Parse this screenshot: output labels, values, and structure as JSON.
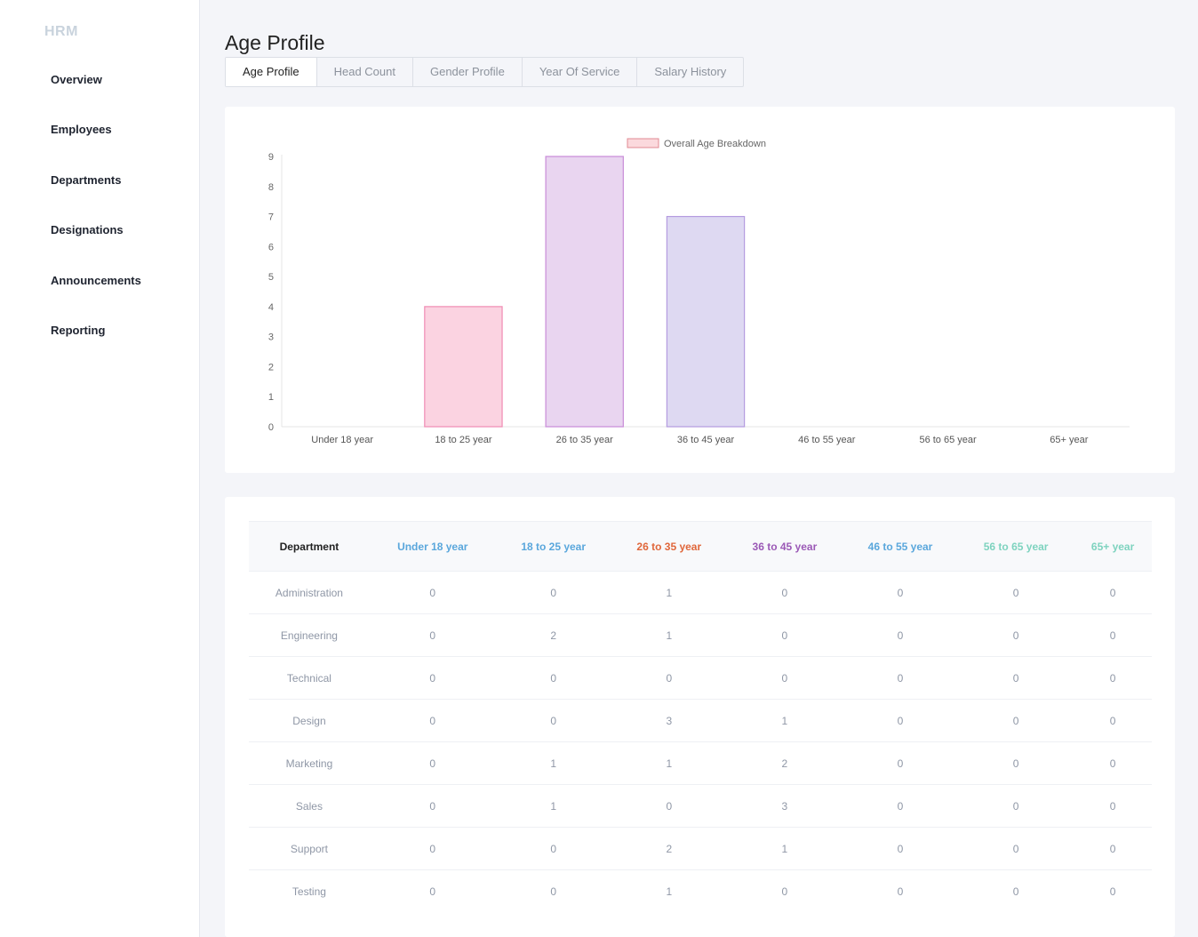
{
  "sidebar": {
    "brand": "HRM",
    "items": [
      {
        "label": "Overview"
      },
      {
        "label": "Employees"
      },
      {
        "label": "Departments"
      },
      {
        "label": "Designations"
      },
      {
        "label": "Announcements"
      },
      {
        "label": "Reporting"
      }
    ]
  },
  "page": {
    "title": "Age Profile"
  },
  "tabs": [
    {
      "label": "Age Profile",
      "active": true
    },
    {
      "label": "Head Count",
      "active": false
    },
    {
      "label": "Gender Profile",
      "active": false
    },
    {
      "label": "Year Of Service",
      "active": false
    },
    {
      "label": "Salary History",
      "active": false
    }
  ],
  "chart_data": {
    "type": "bar",
    "categories": [
      "Under 18 year",
      "18 to 25 year",
      "26 to 35 year",
      "36 to 45 year",
      "46 to 55 year",
      "56 to 65 year",
      "65+ year"
    ],
    "series": [
      {
        "name": "Overall Age Breakdown",
        "values": [
          0,
          4,
          9,
          7,
          0,
          0,
          0
        ]
      }
    ],
    "ylim": [
      0,
      9
    ],
    "yticks": [
      0,
      1,
      2,
      3,
      4,
      5,
      6,
      7,
      8,
      9
    ],
    "legend": "top",
    "legend_color": "#fbd9dd",
    "bar_fills": [
      "#fbd3e1",
      "#fbd3e1",
      "#e9d5f0",
      "#ded9f2",
      "#d6e6f5",
      "#d3f0ea",
      "#d3f0ea"
    ],
    "bar_strokes": [
      "#f08bb3",
      "#f08bb3",
      "#c88bd8",
      "#b49be0",
      "#8db7e0",
      "#7fd6c4",
      "#7fd6c4"
    ],
    "grid": false
  },
  "table": {
    "headers": [
      {
        "label": "Department",
        "color": "#222222"
      },
      {
        "label": "Under 18 year",
        "color": "#5aa7dc"
      },
      {
        "label": "18 to 25 year",
        "color": "#5aa7dc"
      },
      {
        "label": "26 to 35 year",
        "color": "#e0673b"
      },
      {
        "label": "36 to 45 year",
        "color": "#9b59b6"
      },
      {
        "label": "46 to 55 year",
        "color": "#5aa7dc"
      },
      {
        "label": "56 to 65 year",
        "color": "#7ed3bf"
      },
      {
        "label": "65+ year",
        "color": "#7ed3bf"
      }
    ],
    "rows": [
      [
        "Administration",
        "0",
        "0",
        "1",
        "0",
        "0",
        "0",
        "0"
      ],
      [
        "Engineering",
        "0",
        "2",
        "1",
        "0",
        "0",
        "0",
        "0"
      ],
      [
        "Technical",
        "0",
        "0",
        "0",
        "0",
        "0",
        "0",
        "0"
      ],
      [
        "Design",
        "0",
        "0",
        "3",
        "1",
        "0",
        "0",
        "0"
      ],
      [
        "Marketing",
        "0",
        "1",
        "1",
        "2",
        "0",
        "0",
        "0"
      ],
      [
        "Sales",
        "0",
        "1",
        "0",
        "3",
        "0",
        "0",
        "0"
      ],
      [
        "Support",
        "0",
        "0",
        "2",
        "1",
        "0",
        "0",
        "0"
      ],
      [
        "Testing",
        "0",
        "0",
        "1",
        "0",
        "0",
        "0",
        "0"
      ]
    ]
  }
}
